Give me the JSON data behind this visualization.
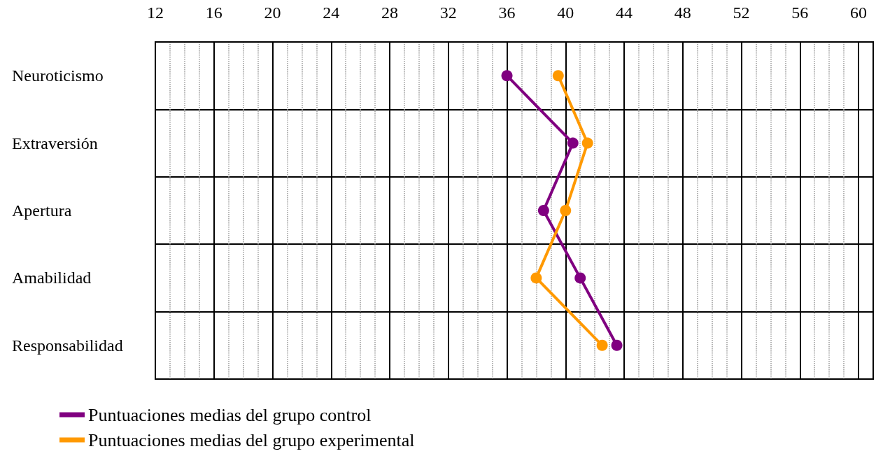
{
  "chart_data": {
    "type": "line",
    "orientation": "horizontal",
    "categories": [
      "Neuroticismo",
      "Extraversión",
      "Apertura",
      "Amabilidad",
      "Responsabilidad"
    ],
    "series": [
      {
        "name": "Puntuaciones medias del grupo control",
        "color": "#800080",
        "values": [
          36,
          40.5,
          38.5,
          41,
          43.5
        ]
      },
      {
        "name": "Puntuaciones medias del grupo experimental",
        "color": "#ff9900",
        "values": [
          39.5,
          41.5,
          40,
          38,
          42.5
        ]
      }
    ],
    "xlim": [
      12,
      61
    ],
    "xticks": [
      12,
      16,
      20,
      24,
      28,
      32,
      36,
      40,
      44,
      48,
      52,
      56,
      60
    ],
    "grid": true,
    "legend": "bottom left",
    "marker": "circle",
    "line_style": "solid"
  }
}
